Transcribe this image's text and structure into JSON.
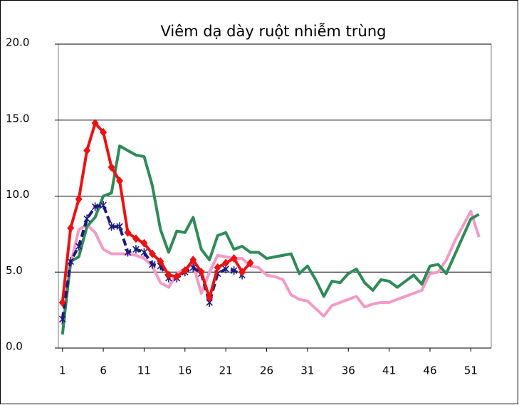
{
  "chart_data": {
    "type": "line",
    "title": "Viêm dạ dày ruột nhiễm trùng",
    "x": [
      1,
      2,
      3,
      4,
      5,
      6,
      7,
      8,
      9,
      10,
      11,
      12,
      13,
      14,
      15,
      16,
      17,
      18,
      19,
      20,
      21,
      22,
      23,
      24,
      25,
      26,
      27,
      28,
      29,
      30,
      31,
      32,
      33,
      34,
      35,
      36,
      37,
      38,
      39,
      40,
      41,
      42,
      43,
      44,
      45,
      46,
      47,
      48,
      49,
      50,
      51,
      52
    ],
    "xlim": [
      0.5,
      53.5
    ],
    "xticks": [
      1,
      6,
      11,
      16,
      21,
      26,
      31,
      36,
      41,
      46,
      51
    ],
    "ylim": [
      0,
      20
    ],
    "yticks": [
      {
        "value": 0,
        "label": "0.0"
      },
      {
        "value": 5,
        "label": "5.0"
      },
      {
        "value": 10,
        "label": "10.0"
      },
      {
        "value": 15,
        "label": "15.0"
      },
      {
        "value": 20,
        "label": "20.0"
      }
    ],
    "grid": true,
    "series": [
      {
        "color": "#f49ac8",
        "width": 4,
        "values": [
          1.5,
          5.5,
          7.8,
          8.1,
          7.6,
          6.5,
          6.2,
          6.2,
          6.2,
          6.1,
          5.9,
          5.4,
          4.3,
          4.0,
          4.9,
          5.2,
          5.5,
          3.6,
          5.0,
          6.1,
          6.0,
          5.9,
          5.9,
          5.4,
          5.3,
          4.8,
          4.7,
          4.5,
          3.5,
          3.2,
          3.1,
          2.6,
          2.1,
          2.8,
          3.0,
          3.2,
          3.4,
          2.7,
          2.9,
          3.0,
          3.0,
          3.2,
          3.4,
          3.6,
          3.8,
          4.9,
          5.0,
          5.8,
          7.0,
          8.0,
          9.0,
          7.3
        ]
      },
      {
        "color": "#2e8b57",
        "width": 4,
        "values": [
          0.9,
          5.7,
          6.0,
          8.0,
          8.6,
          10.0,
          10.2,
          13.3,
          13.0,
          12.7,
          12.6,
          10.7,
          7.8,
          6.3,
          7.7,
          7.6,
          8.6,
          6.5,
          5.8,
          7.4,
          7.6,
          6.5,
          6.7,
          6.3,
          6.3,
          5.9,
          6.0,
          6.1,
          6.2,
          4.9,
          5.4,
          4.5,
          3.4,
          4.4,
          4.3,
          4.9,
          5.2,
          4.3,
          3.8,
          4.5,
          4.4,
          4.0,
          4.4,
          4.8,
          4.2,
          5.4,
          5.5,
          4.9,
          6.1,
          7.3,
          8.5,
          8.8
        ]
      },
      {
        "color": "#1a1a80",
        "width": 4,
        "dash": true,
        "marker": "star",
        "values": [
          1.9,
          5.7,
          6.7,
          8.5,
          9.3,
          9.4,
          8.0,
          8.0,
          6.3,
          6.5,
          6.3,
          5.5,
          5.4,
          4.6,
          4.6,
          5.0,
          5.3,
          4.9,
          3.0,
          4.9,
          5.2,
          5.1,
          4.8,
          null,
          null,
          null,
          null,
          null,
          null,
          null,
          null,
          null,
          null,
          null,
          null,
          null,
          null,
          null,
          null,
          null,
          null,
          null,
          null,
          null,
          null,
          null,
          null,
          null,
          null,
          null,
          null,
          null
        ]
      },
      {
        "color": "#ee1111",
        "width": 4,
        "marker": "diamond",
        "values": [
          3.0,
          7.9,
          9.8,
          13.0,
          14.8,
          14.2,
          11.9,
          11.0,
          7.6,
          7.2,
          6.9,
          6.2,
          5.7,
          4.8,
          4.7,
          5.1,
          5.8,
          5.0,
          3.3,
          5.3,
          5.6,
          5.9,
          5.0,
          5.6,
          null,
          null,
          null,
          null,
          null,
          null,
          null,
          null,
          null,
          null,
          null,
          null,
          null,
          null,
          null,
          null,
          null,
          null,
          null,
          null,
          null,
          null,
          null,
          null,
          null,
          null,
          null,
          null
        ]
      }
    ]
  }
}
